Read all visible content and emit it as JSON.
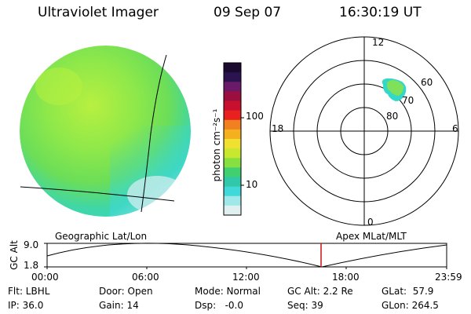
{
  "header": {
    "title": "Ultraviolet Imager",
    "date": "09 Sep 07",
    "time": "16:30:19 UT"
  },
  "colorbar": {
    "unit_label": "photon cm⁻²s⁻¹",
    "tick_100": "100",
    "tick_10": "10",
    "colors": [
      "#1a0a2e",
      "#2b1350",
      "#6b1a6a",
      "#9b0f3f",
      "#c8102e",
      "#e8201e",
      "#f08020",
      "#f5b020",
      "#f0e030",
      "#c8e830",
      "#88e040",
      "#40d070",
      "#30c8a8",
      "#40d8d8",
      "#a0e8e8",
      "#e0f0f0"
    ]
  },
  "globe": {
    "label": "Geographic Lat/Lon",
    "main_color": "#7fe05a",
    "edge_color": "#34d8c8",
    "bright_color": "#b8f040",
    "low_color": "#c8ecec"
  },
  "polar": {
    "label": "Apex MLat/MLT",
    "mlt_top": "12",
    "mlt_left": "18",
    "mlt_right": "6",
    "mlt_bottom": "0",
    "lat_60": "60",
    "lat_70": "70",
    "lat_80": "80",
    "blob_color": "#7fe05a",
    "blob_edge_color": "#34d8c8"
  },
  "timeline": {
    "ylabel": "GC Alt",
    "y_top": "9.0",
    "y_bottom": "1.8",
    "ticks": [
      "00:00",
      "06:00",
      "12:00",
      "18:00",
      "23:59"
    ],
    "current_time_marker_color": "#d01010"
  },
  "status": {
    "filter": "Flt: LBHL",
    "ip": "IP: 36.0",
    "door": "Door: Open",
    "gain": "Gain: 14",
    "mode": "Mode: Normal",
    "dsp": "Dsp:   -0.0",
    "gc_alt": "GC Alt: 2.2 Re",
    "seq": "Seq: 39",
    "glat": "GLat:  57.9",
    "glon": "GLon: 264.5"
  }
}
